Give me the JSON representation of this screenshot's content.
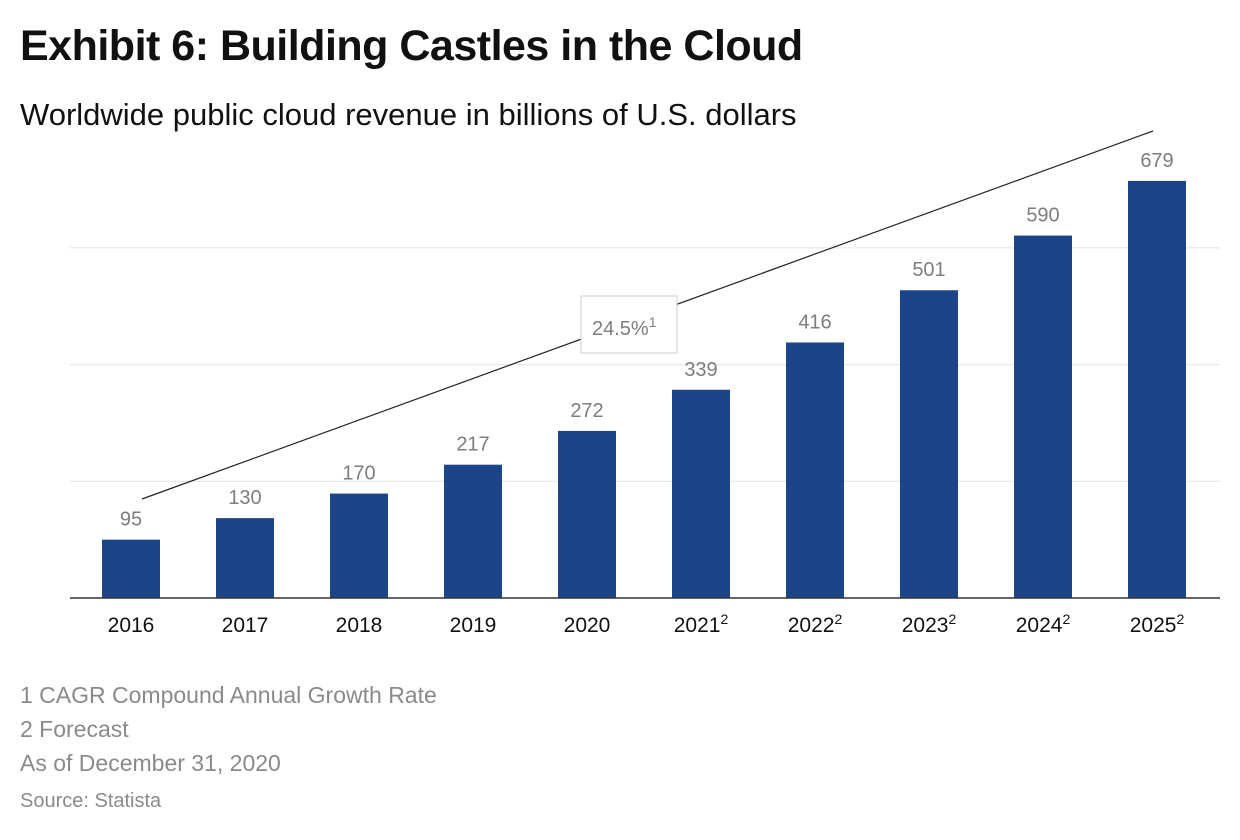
{
  "header": {
    "title": "Exhibit 6: Building Castles in the Cloud",
    "subtitle": "Worldwide public cloud revenue in billions of U.S. dollars"
  },
  "chart_data": {
    "type": "bar",
    "categories": [
      "2016",
      "2017",
      "2018",
      "2019",
      "2020",
      "2021",
      "2022",
      "2023",
      "2024",
      "2025"
    ],
    "category_superscripts": [
      "",
      "",
      "",
      "",
      "",
      "2",
      "2",
      "2",
      "2",
      "2"
    ],
    "values": [
      95,
      130,
      170,
      217,
      272,
      339,
      416,
      501,
      590,
      679
    ],
    "value_labels": [
      "95",
      "130",
      "170",
      "217",
      "272",
      "339",
      "416",
      "501",
      "590",
      "679"
    ],
    "ylim": [
      0,
      700
    ],
    "y_gridlines": [
      190,
      380,
      570
    ],
    "grid": true,
    "bar_color": "#1c4489",
    "trend_line": {
      "label": "24.5%",
      "label_superscript": "1",
      "description": "CAGR trend line from 2016 to 2025"
    }
  },
  "footnotes": [
    "1 CAGR Compound Annual Growth Rate",
    "2 Forecast",
    "As of December 31, 2020"
  ],
  "source": "Source: Statista"
}
